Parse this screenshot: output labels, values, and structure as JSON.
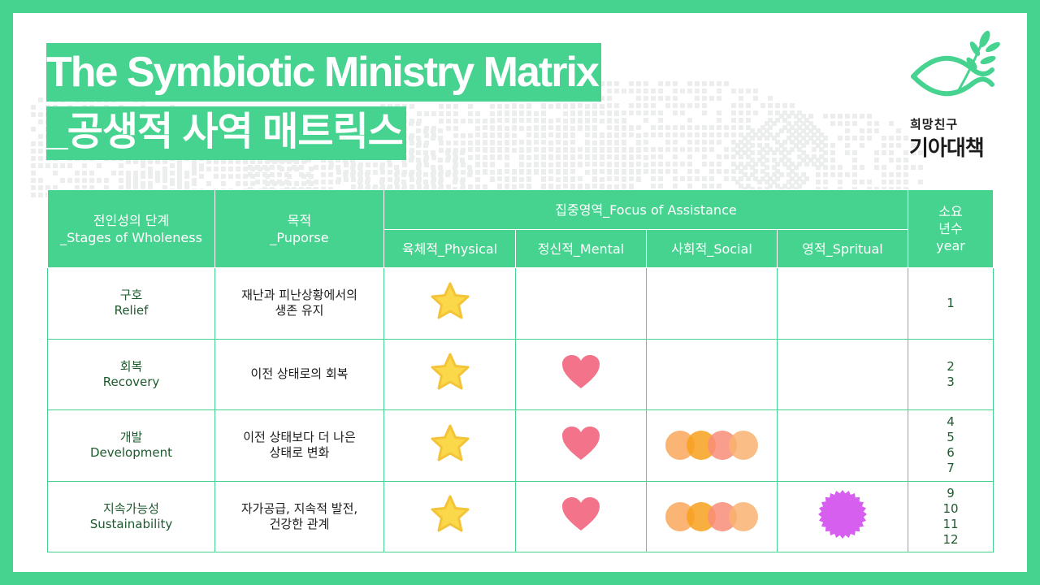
{
  "title": {
    "line1": "The Symbiotic Ministry Matrix",
    "line2": "_공생적 사역 매트릭스"
  },
  "logo": {
    "small_text": "희망친구",
    "big_text": "기아대책",
    "brand_color": "#46d38f"
  },
  "colors": {
    "accent": "#46d38f",
    "star": "#fbd84a",
    "heart": "#f3738a",
    "social_dots": [
      "#f9a85c",
      "#f7a11d",
      "#f88d78",
      "#f9b170"
    ],
    "spiritual_seal": "#d65ff0",
    "body_text": "#1d5a2e"
  },
  "table": {
    "headers": {
      "stages": [
        "전인성의 단계",
        "_Stages of Wholeness"
      ],
      "purpose": [
        "목적",
        "_Puporse"
      ],
      "focus_group": "집중영역_Focus of Assistance",
      "focus_columns": [
        "육체적_Physical",
        "정신적_Mental",
        "사회적_Social",
        "영적_Spritual"
      ],
      "years": [
        "소요",
        "년수",
        "year"
      ]
    },
    "rows": [
      {
        "stage": [
          "구호",
          "Relief"
        ],
        "purpose": [
          "재난과 피난상황에서의",
          "생존 유지"
        ],
        "physical": "star-icon",
        "mental": "",
        "social": "",
        "spiritual": "",
        "years": [
          "1"
        ]
      },
      {
        "stage": [
          "회복",
          "Recovery"
        ],
        "purpose": [
          "이전 상태로의 회복"
        ],
        "physical": "star-icon",
        "mental": "heart-icon",
        "social": "",
        "spiritual": "",
        "years": [
          "2",
          "3"
        ]
      },
      {
        "stage": [
          "개발",
          "Development"
        ],
        "purpose": [
          "이전 상태보다 더 나은",
          "상태로 변화"
        ],
        "physical": "star-icon",
        "mental": "heart-icon",
        "social": "circles-icon",
        "spiritual": "",
        "years": [
          "4",
          "5",
          "6",
          "7"
        ]
      },
      {
        "stage": [
          "지속가능성",
          "Sustainability"
        ],
        "purpose": [
          "자가공급, 지속적 발전,",
          "건강한 관계"
        ],
        "physical": "star-icon",
        "mental": "heart-icon",
        "social": "circles-icon",
        "spiritual": "seal-icon",
        "years": [
          "9",
          "10",
          "11",
          "12"
        ]
      }
    ]
  }
}
